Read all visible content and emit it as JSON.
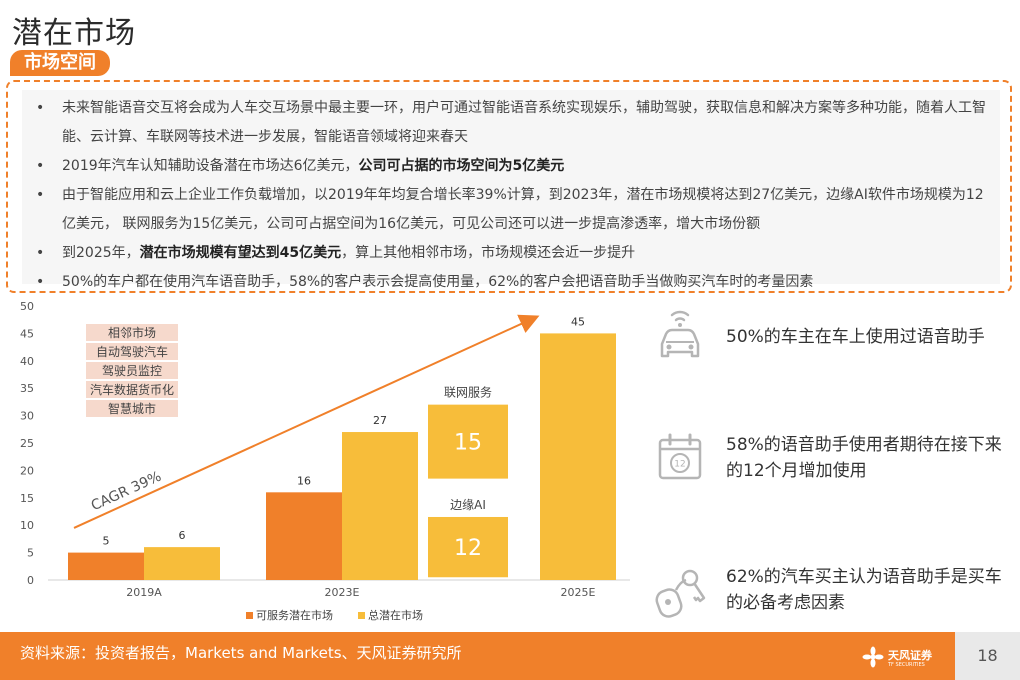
{
  "page": {
    "title": "潜在市场",
    "section_tag": "市场空间",
    "page_number": "18"
  },
  "bullets": [
    {
      "parts": [
        {
          "text": "未来智能语音交互将会成为人车交互场景中最主要一环，用户可通过智能语音系统实现娱乐，辅助驾驶，获取信息和解决方案等多种功能，随着人工智能、云计算、车联网等技术进一步发展，智能语音领域将迎来春天",
          "bold": false
        }
      ]
    },
    {
      "parts": [
        {
          "text": "2019年汽车认知辅助设备潜在市场达6亿美元，",
          "bold": false
        },
        {
          "text": "公司可占据的市场空间为5亿美元",
          "bold": true
        }
      ]
    },
    {
      "parts": [
        {
          "text": "由于智能应用和云上企业工作负载增加，以2019年年均复合增长率39%计算，到2023年，潜在市场规模将达到27亿美元，边缘AI软件市场规模为12亿美元， 联网服务为15亿美元，公司可占据空间为16亿美元，可见公司还可以进一步提高渗透率，增大市场份额",
          "bold": false
        }
      ]
    },
    {
      "parts": [
        {
          "text": "到2025年，",
          "bold": false
        },
        {
          "text": "潜在市场规模有望达到45亿美元",
          "bold": true
        },
        {
          "text": "，算上其他相邻市场，市场规模还会近一步提升",
          "bold": false
        }
      ]
    },
    {
      "parts": [
        {
          "text": "50%的车户都在使用汽车语音助手，58%的客户表示会提高使用量，62%的客户会把语音助手当做购买汽车时的考量因素",
          "bold": false
        }
      ]
    }
  ],
  "chart_data": {
    "type": "bar",
    "categories": [
      "2019A",
      "2023E",
      "2025E"
    ],
    "series": [
      {
        "name": "可服务潜在市场",
        "values": [
          5,
          16,
          null
        ],
        "color": "#f0802a"
      },
      {
        "name": "总潜在市场",
        "values": [
          6,
          27,
          45
        ],
        "color": "#f7bd3a"
      }
    ],
    "ylim": [
      0,
      50
    ],
    "yticks": [
      0,
      5,
      10,
      15,
      20,
      25,
      30,
      35,
      40,
      45,
      50
    ],
    "legend_position": "bottom",
    "grid": false,
    "annotations": {
      "cagr_label": "CAGR 39%",
      "adjacent_markets": [
        "相邻市场",
        "自动驾驶汽车",
        "驾驶员监控",
        "汽车数据货币化",
        "智慧城市"
      ],
      "breakdown_2023": [
        {
          "label": "联网服务",
          "value": 15
        },
        {
          "label": "边缘AI",
          "value": 12
        }
      ]
    }
  },
  "stats": [
    {
      "icon": "car-wifi-icon",
      "text": "50%的车主在车上使用过语音助手"
    },
    {
      "icon": "calendar-icon",
      "text": "58%的语音助手使用者期待在接下来的12个月增加使用"
    },
    {
      "icon": "car-keys-icon",
      "text": "62%的汽车买主认为语音助手是买车的必备考虑因素"
    }
  ],
  "calendar_icon_text": "12",
  "footer": {
    "source": "资料来源：投资者报告，Markets and Markets、天风证券研究所",
    "logo_text": "天风证券",
    "logo_sub": "TF SECURITIES"
  },
  "colors": {
    "accent": "#f0802a",
    "bar_total": "#f7bd3a",
    "tag_bg": "#f6d9cc",
    "icon_gray": "#b5b5b5"
  }
}
